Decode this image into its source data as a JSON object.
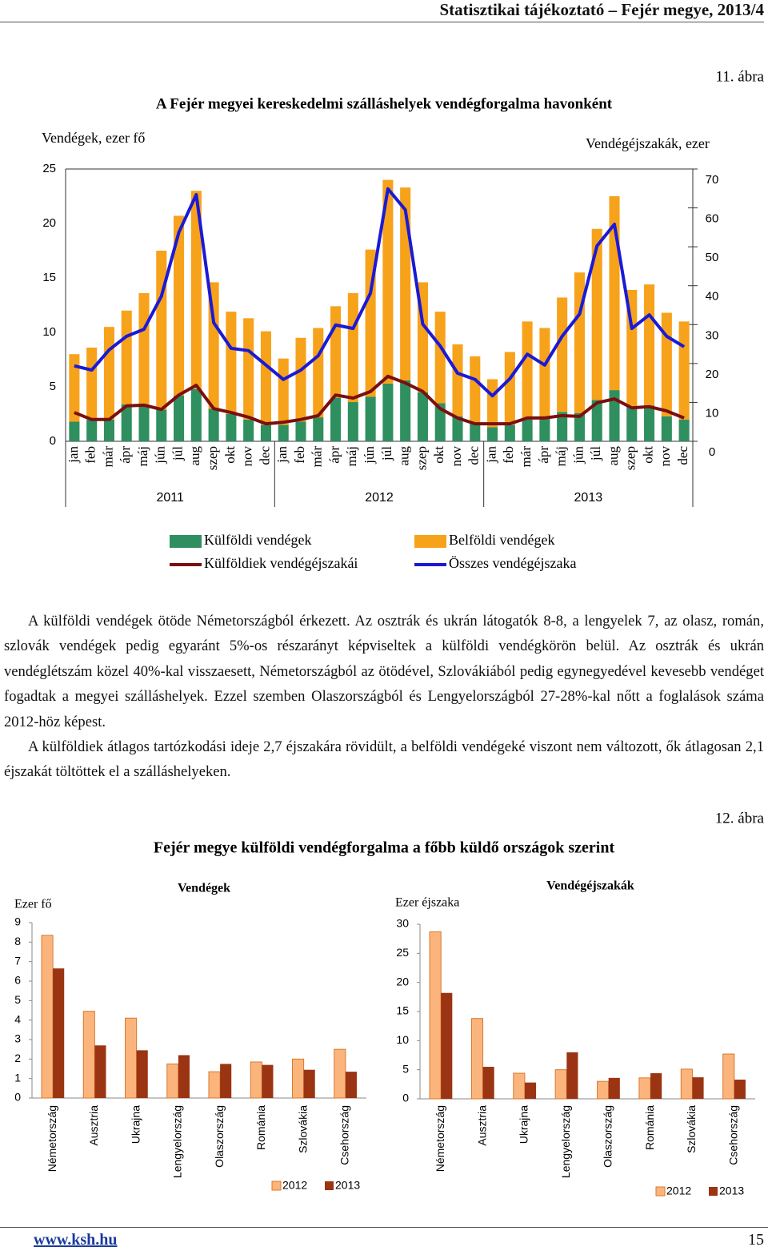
{
  "header": {
    "title": "Statisztikai tájékoztató – Fejér megye, 2013/4"
  },
  "figures": [
    {
      "number": "11. ábra"
    },
    {
      "number": "12. ábra",
      "title": "Fejér megye külföldi vendégforgalma a főbb küldő országok szerint"
    }
  ],
  "chart_data": [
    {
      "type": "bar-line",
      "title": "A Fejér megyei kereskedelmi szálláshelyek vendégforgalma havonként",
      "y_label": "Vendégek, ezer fő",
      "y2_label": "Vendégéjszakák, ezer",
      "categories": [
        "jan",
        "feb",
        "már",
        "ápr",
        "máj",
        "jún",
        "júl",
        "aug",
        "szep",
        "okt",
        "nov",
        "dec",
        "jan",
        "feb",
        "már",
        "ápr",
        "máj",
        "jún",
        "júl",
        "aug",
        "szep",
        "okt",
        "nov",
        "dec",
        "jan",
        "feb",
        "már",
        "ápr",
        "máj",
        "jún",
        "júl",
        "aug",
        "szep",
        "okt",
        "nov",
        "dec"
      ],
      "years": [
        "2011",
        "2012",
        "2013"
      ],
      "series": [
        {
          "name": "Külföldi vendégek",
          "type": "bar",
          "color": "#2f8f5f",
          "values": [
            1.8,
            2.0,
            2.0,
            3.4,
            3.3,
            2.9,
            4.2,
            4.8,
            3.0,
            2.5,
            2.0,
            1.5,
            1.5,
            1.8,
            2.2,
            4.0,
            3.6,
            4.1,
            5.3,
            5.6,
            4.5,
            3.5,
            2.3,
            1.6,
            1.3,
            1.5,
            2.0,
            2.2,
            2.7,
            2.6,
            3.8,
            4.7,
            3.2,
            3.3,
            2.3,
            2.0
          ]
        },
        {
          "name": "Belföldi vendégek",
          "type": "bar",
          "color": "#f7a21b",
          "values": [
            6.2,
            6.6,
            8.5,
            8.6,
            10.3,
            14.6,
            16.5,
            18.2,
            11.6,
            9.4,
            9.3,
            8.6,
            6.1,
            7.7,
            8.2,
            8.4,
            10.0,
            13.5,
            18.7,
            17.7,
            10.1,
            8.4,
            6.6,
            6.2,
            4.4,
            6.7,
            9.0,
            8.2,
            10.5,
            12.9,
            15.7,
            17.8,
            10.7,
            11.1,
            9.5,
            9.0
          ]
        },
        {
          "name": "Külföldiek vendégéjszakái",
          "type": "line",
          "axis": "y2",
          "color": "#7b0f0f",
          "values": [
            7.4,
            5.6,
            5.6,
            9.1,
            9.3,
            8.2,
            11.9,
            14.4,
            8.4,
            7.4,
            6.2,
            4.5,
            4.9,
            5.6,
            6.6,
            11.9,
            11.1,
            12.8,
            16.7,
            15.0,
            12.8,
            8.4,
            6.0,
            4.5,
            4.5,
            4.5,
            6.0,
            6.0,
            6.6,
            6.4,
            9.9,
            10.9,
            8.6,
            8.9,
            7.8,
            6.0
          ]
        },
        {
          "name": "Összes vendégéjszaka",
          "type": "line",
          "axis": "y2",
          "color": "#1a1ad6",
          "values": [
            19.4,
            18.3,
            23.5,
            27.0,
            28.8,
            37.3,
            53.7,
            63.4,
            30.5,
            23.9,
            23.3,
            19.6,
            15.9,
            18.3,
            22.0,
            29.9,
            29.0,
            38.1,
            64.9,
            59.5,
            30.1,
            24.5,
            17.5,
            15.9,
            11.7,
            16.1,
            22.4,
            19.6,
            27.0,
            32.7,
            50.2,
            55.8,
            29.0,
            32.5,
            27.0,
            24.3
          ]
        }
      ],
      "ylim": [
        0,
        25
      ],
      "yticks": [
        0,
        5,
        10,
        15,
        20,
        25
      ],
      "y2lim": [
        0,
        70
      ],
      "y2ticks": [
        0,
        10,
        20,
        30,
        40,
        50,
        60,
        70
      ],
      "grid": false
    },
    {
      "type": "bar",
      "title": "Vendégek",
      "y_label": "Ezer fő",
      "categories": [
        "Németország",
        "Ausztria",
        "Ukrajna",
        "Lengyelország",
        "Olaszország",
        "Románia",
        "Szlovákia",
        "Csehország"
      ],
      "series": [
        {
          "name": "2012",
          "color": "#fbb57c",
          "values": [
            8.35,
            4.45,
            4.1,
            1.75,
            1.35,
            1.85,
            2.0,
            2.5
          ]
        },
        {
          "name": "2013",
          "color": "#9a3412",
          "values": [
            6.65,
            2.7,
            2.45,
            2.2,
            1.75,
            1.7,
            1.45,
            1.35
          ]
        }
      ],
      "ylim": [
        0,
        9
      ],
      "yticks": [
        0,
        1,
        2,
        3,
        4,
        5,
        6,
        7,
        8,
        9
      ],
      "grid": false
    },
    {
      "type": "bar",
      "title": "Vendégéjszakák",
      "y_label": "Ezer éjszaka",
      "categories": [
        "Németország",
        "Ausztria",
        "Ukrajna",
        "Lengyelország",
        "Olaszország",
        "Románia",
        "Szlovákia",
        "Csehország"
      ],
      "series": [
        {
          "name": "2012",
          "color": "#fbb57c",
          "values": [
            28.7,
            13.8,
            4.4,
            5.0,
            3.0,
            3.6,
            5.1,
            7.7
          ]
        },
        {
          "name": "2013",
          "color": "#9a3412",
          "values": [
            18.2,
            5.5,
            2.8,
            8.0,
            3.6,
            4.4,
            3.7,
            3.3
          ]
        }
      ],
      "ylim": [
        0,
        30
      ],
      "yticks": [
        0,
        5,
        10,
        15,
        20,
        25,
        30
      ],
      "grid": false
    }
  ],
  "text": {
    "paragraphs": [
      "A külföldi vendégek ötöde Németországból érkezett. Az osztrák és ukrán látogatók 8-8, a lengyelek 7, az olasz, román, szlovák vendégek pedig egyaránt 5%-os részarányt képviseltek a külföldi vendégkörön belül. Az osztrák és ukrán vendéglétszám közel 40%-kal visszaesett, Németországból az ötödével, Szlovákiából pedig egynegyedével kevesebb vendéget fogadtak a megyei szálláshelyek. Ezzel szemben Olaszországból és Lengyelországból 27-28%-kal nőtt a foglalások száma 2012-höz képest.",
      "A külföldiek átlagos tartózkodási ideje 2,7 éjszakára rövidült, a belföldi vendégeké viszont nem változott, ők átlagosan 2,1 éjszakát töltöttek el a szálláshelyeken."
    ]
  },
  "footer": {
    "link": "www.ksh.hu",
    "page": "15"
  }
}
